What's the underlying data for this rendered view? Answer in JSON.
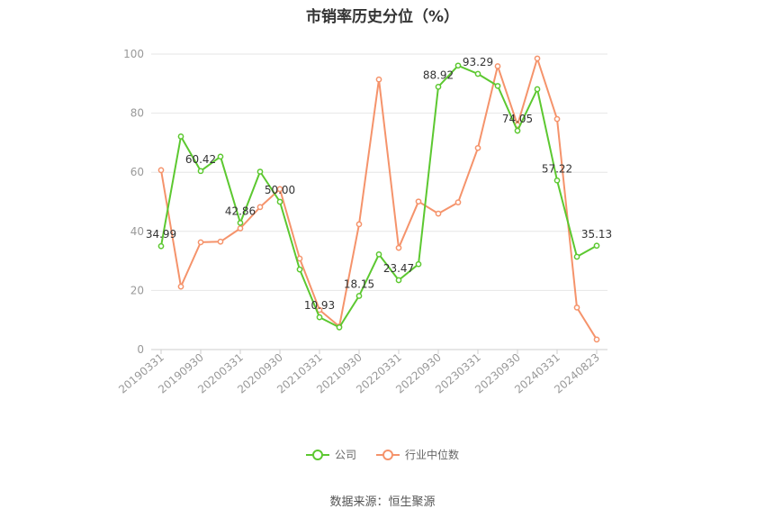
{
  "chart_data": {
    "type": "line",
    "title": "市销率历史分位（%）",
    "ylim": [
      0,
      100
    ],
    "yticks": [
      0,
      20,
      40,
      60,
      80,
      100
    ],
    "x_tick_labels": [
      "20190331",
      "20190930",
      "20200331",
      "20200930",
      "20210331",
      "20210930",
      "20220331",
      "20220930",
      "20230331",
      "20230930",
      "20240331",
      "20240823"
    ],
    "x": [
      "20190331",
      "20190630",
      "20190930",
      "20191231",
      "20200331",
      "20200630",
      "20200930",
      "20201231",
      "20210331",
      "20210630",
      "20210930",
      "20211231",
      "20220331",
      "20220630",
      "20220930",
      "20221231",
      "20230331",
      "20230630",
      "20230930",
      "20231231",
      "20240331",
      "20240630",
      "20240823"
    ],
    "series": [
      {
        "name": "公司",
        "color": "#5cc830",
        "values": [
          34.99,
          72.1,
          60.42,
          65.3,
          42.86,
          60.2,
          50.0,
          27.1,
          10.93,
          7.5,
          18.15,
          32.2,
          23.47,
          28.9,
          88.92,
          96.1,
          93.29,
          89.2,
          74.05,
          88.1,
          57.22,
          31.4,
          35.13
        ],
        "labels": {
          "0": "34.99",
          "2": "60.42",
          "4": "42.86",
          "6": "50.00",
          "8": "10.93",
          "10": "18.15",
          "12": "23.47",
          "14": "88.92",
          "16": "93.29",
          "18": "74.05",
          "20": "57.22",
          "22": "35.13"
        }
      },
      {
        "name": "行业中位数",
        "color": "#f5936b",
        "values": [
          60.7,
          21.3,
          36.3,
          36.5,
          41.0,
          48.2,
          54.3,
          30.8,
          13.4,
          7.8,
          42.4,
          91.4,
          34.4,
          50.1,
          46.0,
          49.8,
          68.2,
          95.9,
          76.0,
          98.5,
          78.0,
          14.2,
          3.4
        ],
        "labels": {}
      }
    ],
    "legend_position": "bottom-center",
    "grid": true
  },
  "source_text": "数据来源：恒生聚源"
}
